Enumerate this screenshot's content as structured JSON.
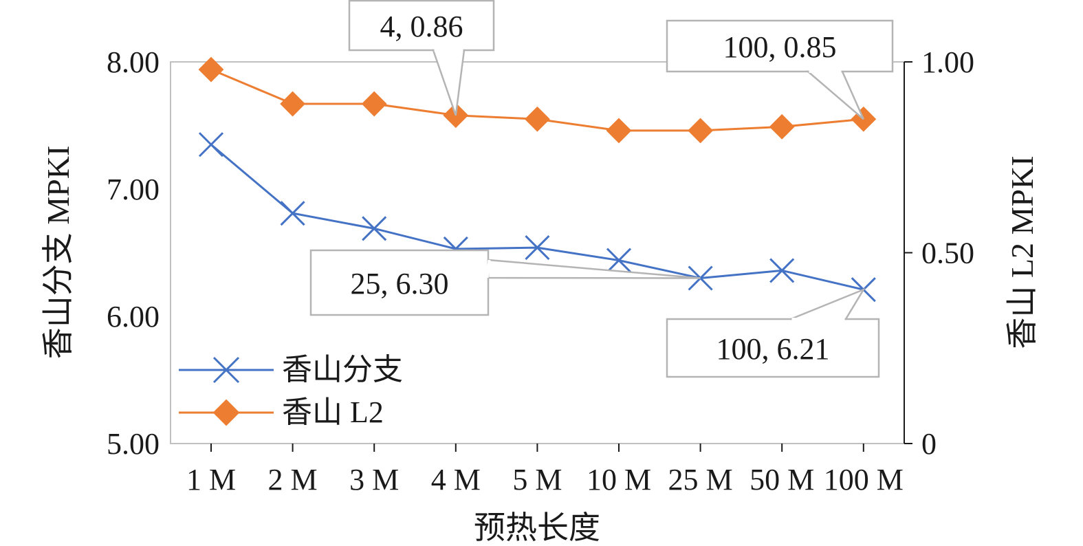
{
  "chart_data": {
    "type": "line",
    "title": "",
    "xlabel": "预热长度",
    "ylabel_left": "香山分支 MPKI",
    "ylabel_right": "香山 L2 MPKI",
    "categories": [
      "1 M",
      "2 M",
      "3 M",
      "4 M",
      "5 M",
      "10 M",
      "25 M",
      "50 M",
      "100 M"
    ],
    "ylim_left": [
      5,
      8
    ],
    "ylim_right": [
      0,
      1
    ],
    "yticks_left": [
      "5.00",
      "6.00",
      "7.00",
      "8.00"
    ],
    "yticks_right": [
      "0",
      "0.50",
      "1.00"
    ],
    "grid": false,
    "legend_position": "bottom-left",
    "series": [
      {
        "name": "香山分支",
        "axis": "left",
        "marker": "x",
        "color": "#4472c4",
        "values": [
          7.35,
          6.81,
          6.69,
          6.53,
          6.54,
          6.44,
          6.3,
          6.36,
          6.21
        ]
      },
      {
        "name": "香山 L2",
        "axis": "right",
        "marker": "diamond",
        "color": "#ed7d31",
        "values": [
          0.98,
          0.89,
          0.89,
          0.86,
          0.85,
          0.82,
          0.82,
          0.83,
          0.85
        ]
      }
    ],
    "annotations": [
      {
        "text": "4, 0.86",
        "series": 1,
        "index": 3
      },
      {
        "text": "100, 0.85",
        "series": 1,
        "index": 8
      },
      {
        "text": "25, 6.30",
        "series": 0,
        "index": 6
      },
      {
        "text": "100, 6.21",
        "series": 0,
        "index": 8
      }
    ]
  }
}
